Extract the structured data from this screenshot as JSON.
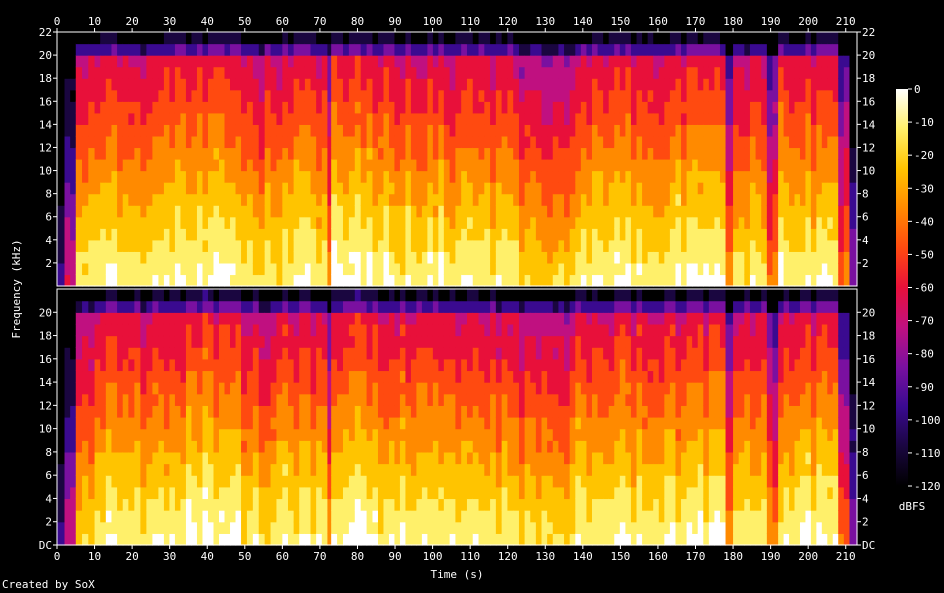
{
  "footer": "Created by SoX",
  "chart_data": {
    "type": "heatmap",
    "kind": "spectrogram",
    "channels": 2,
    "xlabel": "Time (s)",
    "ylabel": "Frequency (kHz)",
    "x_ticks": [
      0,
      10,
      20,
      30,
      40,
      50,
      60,
      70,
      80,
      90,
      100,
      110,
      120,
      130,
      140,
      150,
      160,
      170,
      180,
      190,
      200,
      210
    ],
    "x_range": [
      0,
      213
    ],
    "y_ticks_top": [
      "2",
      "4",
      "6",
      "8",
      "10",
      "12",
      "14",
      "16",
      "18",
      "20",
      "22"
    ],
    "y_ticks_bottom": [
      "DC",
      "2",
      "4",
      "6",
      "8",
      "10",
      "12",
      "14",
      "16",
      "18",
      "20"
    ],
    "y_range_khz": [
      0,
      22
    ],
    "colorbar": {
      "label": "dBFS",
      "ticks": [
        0,
        -10,
        -20,
        -30,
        -40,
        -50,
        -60,
        -70,
        -80,
        -90,
        -100,
        -110,
        -120
      ],
      "range": [
        -120,
        0
      ]
    },
    "colors": {
      "background": "#000000",
      "axis": "#ffffff",
      "c0": "#000000",
      "c1": "#1a0640",
      "c2": "#3a0a90",
      "c3": "#7a10a0",
      "c4": "#c01080",
      "c5": "#e8103a",
      "c6": "#ff4a10",
      "c7": "#ff8a00",
      "c8": "#ffc400",
      "c9": "#fff06a",
      "c10": "#ffffff"
    },
    "segments_s": [
      {
        "t0": 0,
        "t1": 2,
        "level": 0.15
      },
      {
        "t0": 2,
        "t1": 5,
        "level": 0.35
      },
      {
        "t0": 5,
        "t1": 10,
        "level": 0.78
      },
      {
        "t0": 10,
        "t1": 19,
        "level": 0.85
      },
      {
        "t0": 19,
        "t1": 27,
        "level": 0.8
      },
      {
        "t0": 27,
        "t1": 49,
        "level": 0.86
      },
      {
        "t0": 49,
        "t1": 60,
        "level": 0.78
      },
      {
        "t0": 60,
        "t1": 72,
        "level": 0.82
      },
      {
        "t0": 72,
        "t1": 73,
        "level": 0.6
      },
      {
        "t0": 73,
        "t1": 84,
        "level": 0.88
      },
      {
        "t0": 84,
        "t1": 103,
        "level": 0.83
      },
      {
        "t0": 103,
        "t1": 123,
        "level": 0.8
      },
      {
        "t0": 123,
        "t1": 138,
        "level": 0.74
      },
      {
        "t0": 138,
        "t1": 178,
        "level": 0.84
      },
      {
        "t0": 178,
        "t1": 180,
        "level": 0.55
      },
      {
        "t0": 180,
        "t1": 189,
        "level": 0.8
      },
      {
        "t0": 189,
        "t1": 192,
        "level": 0.6
      },
      {
        "t0": 192,
        "t1": 208,
        "level": 0.84
      },
      {
        "t0": 208,
        "t1": 211,
        "level": 0.55
      },
      {
        "t0": 211,
        "t1": 213,
        "level": 0.2
      }
    ]
  }
}
